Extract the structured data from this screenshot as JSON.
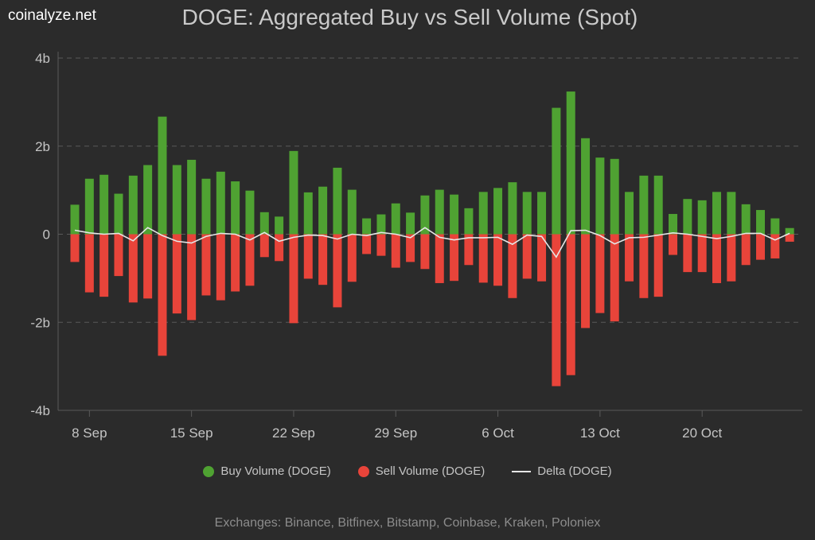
{
  "logo": "coinalyze.net",
  "chart_data": {
    "type": "bar",
    "title": "DOGE: Aggregated Buy vs Sell Volume (Spot)",
    "x_start": "2024-09-07",
    "x_tick_labels": [
      "8 Sep",
      "15 Sep",
      "22 Sep",
      "29 Sep",
      "6 Oct",
      "13 Oct",
      "20 Oct"
    ],
    "x_tick_days": [
      "2024-09-08",
      "2024-09-15",
      "2024-09-22",
      "2024-09-29",
      "2024-10-06",
      "2024-10-13",
      "2024-10-20"
    ],
    "y_ticks": [
      4,
      2,
      0,
      -2,
      -4
    ],
    "y_tick_labels": [
      "4b",
      "2b",
      "0",
      "-2b",
      "-4b"
    ],
    "ylim": [
      -4,
      4
    ],
    "y_unit": "billions",
    "grid": true,
    "legend_placement": "bottom",
    "series": [
      {
        "name": "Buy Volume (DOGE)",
        "color": "#4fa232",
        "values": [
          0.67,
          1.26,
          1.35,
          0.92,
          1.33,
          1.57,
          2.67,
          1.57,
          1.69,
          1.26,
          1.42,
          1.2,
          0.99,
          0.5,
          0.4,
          1.89,
          0.95,
          1.08,
          1.51,
          1.01,
          0.36,
          0.45,
          0.7,
          0.49,
          0.88,
          1.01,
          0.9,
          0.59,
          0.96,
          1.05,
          1.18,
          0.96,
          0.96,
          2.87,
          3.24,
          2.18,
          1.74,
          1.71,
          0.96,
          1.33,
          1.33,
          0.46,
          0.8,
          0.77,
          0.96,
          0.96,
          0.68,
          0.55,
          0.36,
          0.14
        ]
      },
      {
        "name": "Sell Volume (DOGE)",
        "color": "#e8443a",
        "values": [
          -0.63,
          -1.32,
          -1.42,
          -0.95,
          -1.55,
          -1.46,
          -2.76,
          -1.8,
          -1.95,
          -1.39,
          -1.5,
          -1.3,
          -1.17,
          -0.52,
          -0.61,
          -2.02,
          -1.01,
          -1.15,
          -1.66,
          -1.08,
          -0.45,
          -0.49,
          -0.76,
          -0.63,
          -0.79,
          -1.11,
          -1.06,
          -0.7,
          -1.1,
          -1.17,
          -1.45,
          -1.01,
          -1.07,
          -3.45,
          -3.2,
          -2.13,
          -1.79,
          -1.98,
          -1.07,
          -1.45,
          -1.42,
          -0.47,
          -0.86,
          -0.86,
          -1.11,
          -1.07,
          -0.7,
          -0.58,
          -0.55,
          -0.17
        ]
      },
      {
        "name": "Delta (DOGE)",
        "color": "#e6e6e6",
        "type": "line",
        "values": [
          0.09,
          0.03,
          0,
          0.02,
          -0.15,
          0.15,
          -0.03,
          -0.16,
          -0.2,
          -0.05,
          0.02,
          0,
          -0.13,
          0.04,
          -0.16,
          -0.07,
          -0.02,
          -0.03,
          -0.11,
          0,
          -0.03,
          0.04,
          0,
          -0.08,
          0.15,
          -0.07,
          -0.13,
          -0.08,
          -0.08,
          -0.07,
          -0.23,
          -0.02,
          -0.05,
          -0.52,
          0.08,
          0.09,
          -0.03,
          -0.22,
          -0.08,
          -0.07,
          -0.02,
          0.03,
          0,
          -0.05,
          -0.1,
          -0.05,
          0.02,
          0.02,
          -0.13,
          0.02
        ]
      }
    ]
  },
  "footer": "Exchanges: Binance, Bitfinex, Bitstamp, Coinbase, Kraken, Poloniex"
}
